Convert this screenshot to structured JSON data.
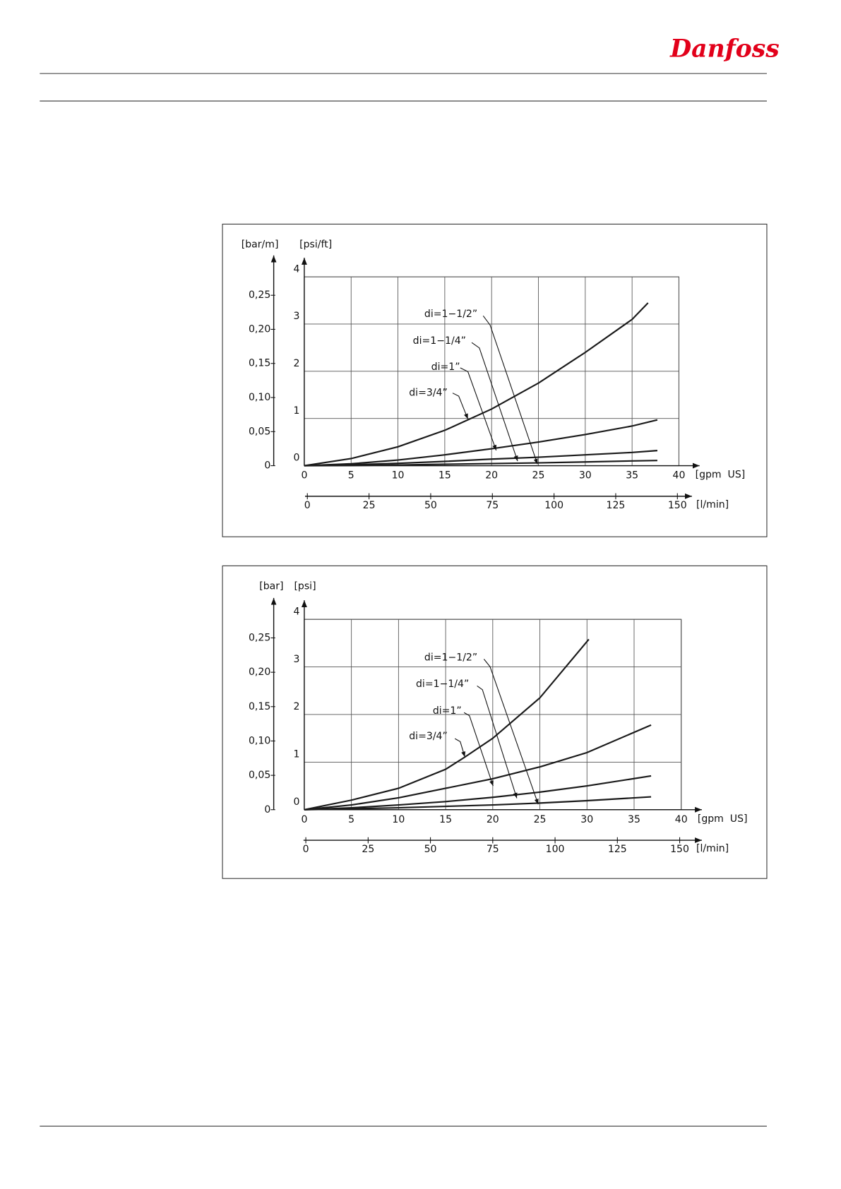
{
  "header": {
    "logo": "Danfoss"
  },
  "chart_data": [
    {
      "type": "line",
      "ylabel": "[psi/ft]",
      "y2label": "[bar/m]",
      "xlabel": "[gpm  US]",
      "x2label": "[l/min]",
      "xlim": [
        0,
        40
      ],
      "xticks": [
        0,
        5,
        10,
        15,
        20,
        25,
        30,
        35,
        40
      ],
      "x2lim": [
        0,
        150
      ],
      "x2ticks": [
        0,
        25,
        50,
        75,
        100,
        125,
        150
      ],
      "ylim": [
        0,
        4
      ],
      "yticks": [
        0,
        1,
        2,
        3,
        4
      ],
      "y2lim": [
        0,
        0.277
      ],
      "y2ticks": [
        0,
        {
          "value": 0.05,
          "label": "0,05"
        },
        {
          "value": 0.1,
          "label": "0,10"
        },
        {
          "value": 0.15,
          "label": "0,15"
        },
        {
          "value": 0.2,
          "label": "0,20"
        },
        {
          "value": 0.25,
          "label": "0,25"
        }
      ],
      "grid": true,
      "series": [
        {
          "name": "di=3/4”",
          "color": "#1a1a1a",
          "x": [
            0,
            5,
            10,
            15,
            20,
            25,
            30,
            35,
            36.7
          ],
          "values": [
            0,
            0.15,
            0.4,
            0.75,
            1.2,
            1.75,
            2.4,
            3.1,
            3.45
          ]
        },
        {
          "name": "di=1”",
          "color": "#1a1a1a",
          "x": [
            0,
            5,
            10,
            15,
            20,
            25,
            30,
            35,
            37.7
          ],
          "values": [
            0,
            0.04,
            0.12,
            0.23,
            0.36,
            0.5,
            0.66,
            0.84,
            0.97
          ]
        },
        {
          "name": "di=1−1/4”",
          "color": "#1a1a1a",
          "x": [
            0,
            5,
            10,
            15,
            20,
            25,
            30,
            35,
            37.7
          ],
          "values": [
            0,
            0.02,
            0.05,
            0.09,
            0.14,
            0.18,
            0.23,
            0.28,
            0.32
          ]
        },
        {
          "name": "di=1−1/2”",
          "color": "#1a1a1a",
          "x": [
            0,
            5,
            10,
            15,
            20,
            25,
            30,
            35,
            37.7
          ],
          "values": [
            0,
            0.005,
            0.015,
            0.03,
            0.045,
            0.06,
            0.08,
            0.1,
            0.11
          ]
        }
      ]
    },
    {
      "type": "line",
      "ylabel": "[psi]",
      "y2label": "[bar]",
      "xlabel": "[gpm  US]",
      "x2label": "[l/min]",
      "xlim": [
        0,
        40
      ],
      "xticks": [
        0,
        5,
        10,
        15,
        20,
        25,
        30,
        35,
        40
      ],
      "x2lim": [
        0,
        150
      ],
      "x2ticks": [
        0,
        25,
        50,
        75,
        100,
        125,
        150
      ],
      "ylim": [
        0,
        4
      ],
      "yticks": [
        0,
        1,
        2,
        3,
        4
      ],
      "y2lim": [
        0,
        0.277
      ],
      "y2ticks": [
        0,
        {
          "value": 0.05,
          "label": "0,05"
        },
        {
          "value": 0.1,
          "label": "0,10"
        },
        {
          "value": 0.15,
          "label": "0,15"
        },
        {
          "value": 0.2,
          "label": "0,20"
        },
        {
          "value": 0.25,
          "label": "0,25"
        }
      ],
      "grid": true,
      "series": [
        {
          "name": "di=3/4”",
          "color": "#1a1a1a",
          "x": [
            0,
            5,
            10,
            15,
            17,
            20,
            25,
            30.2
          ],
          "values": [
            0,
            0.2,
            0.45,
            0.85,
            1.1,
            1.5,
            2.35,
            3.58
          ]
        },
        {
          "name": "di=1”",
          "color": "#1a1a1a",
          "x": [
            0,
            5,
            10,
            15,
            20,
            25,
            30,
            36.8
          ],
          "values": [
            0,
            0.1,
            0.25,
            0.45,
            0.65,
            0.9,
            1.2,
            1.78
          ]
        },
        {
          "name": "di=1−1/4”",
          "color": "#1a1a1a",
          "x": [
            0,
            5,
            10,
            15,
            20,
            25,
            30,
            36.8
          ],
          "values": [
            0,
            0.04,
            0.1,
            0.17,
            0.26,
            0.37,
            0.5,
            0.71
          ]
        },
        {
          "name": "di=1−1/2”",
          "color": "#1a1a1a",
          "x": [
            0,
            5,
            10,
            15,
            20,
            25,
            30,
            36.8
          ],
          "values": [
            0,
            0.02,
            0.04,
            0.07,
            0.1,
            0.14,
            0.19,
            0.27
          ]
        }
      ]
    }
  ]
}
